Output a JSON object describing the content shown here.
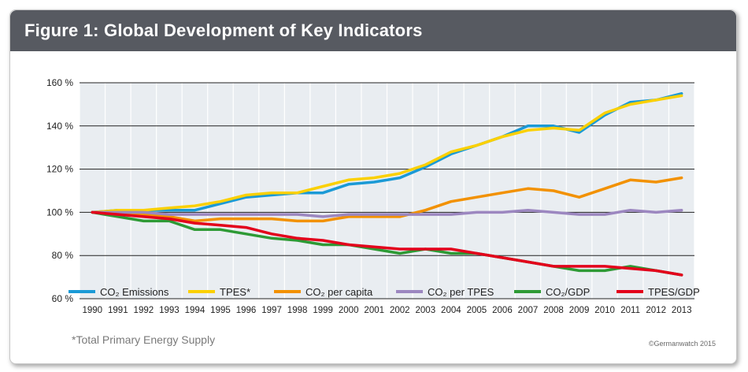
{
  "header": {
    "title": "Figure 1: Global Development of Key Indicators"
  },
  "footer": {
    "footnote": "*Total Primary Energy Supply",
    "copyright": "©Germanwatch 2015"
  },
  "chart_data": {
    "type": "line",
    "title": "Figure 1: Global Development of Key Indicators",
    "x": [
      1990,
      1991,
      1992,
      1993,
      1994,
      1995,
      1996,
      1997,
      1998,
      1999,
      2000,
      2001,
      2002,
      2003,
      2004,
      2005,
      2006,
      2007,
      2008,
      2009,
      2010,
      2011,
      2012,
      2013
    ],
    "x_tick_labels": [
      "1990",
      "1991",
      "1992",
      "1993",
      "1994",
      "1995",
      "1996",
      "1997",
      "1998",
      "1999",
      "2000",
      "2001",
      "2002",
      "2003",
      "2004",
      "2005",
      "2006",
      "2007",
      "2008",
      "2009",
      "2010",
      "2011",
      "2012",
      "2013"
    ],
    "ylim": [
      60,
      160
    ],
    "y_ticks": [
      60,
      80,
      100,
      120,
      140,
      160
    ],
    "y_tick_labels": [
      "60 %",
      "80 %",
      "100 %",
      "120 %",
      "140 %",
      "160 %"
    ],
    "grid": true,
    "legend_position": "bottom",
    "series": [
      {
        "name": "CO₂ Emissions",
        "color": "#1b9ad6",
        "values": [
          100,
          101,
          101,
          101,
          101,
          104,
          107,
          108,
          109,
          109,
          113,
          114,
          116,
          121,
          127,
          131,
          135,
          140,
          140,
          137,
          145,
          151,
          152,
          155
        ]
      },
      {
        "name": "TPES*",
        "color": "#fbd000",
        "values": [
          100,
          101,
          101,
          102,
          103,
          105,
          108,
          109,
          109,
          112,
          115,
          116,
          118,
          122,
          128,
          131,
          135,
          138,
          139,
          138,
          146,
          150,
          152,
          154
        ]
      },
      {
        "name": "CO₂ per capita",
        "color": "#f29100",
        "values": [
          100,
          100,
          99,
          98,
          96,
          97,
          97,
          97,
          96,
          96,
          98,
          98,
          98,
          101,
          105,
          107,
          109,
          111,
          110,
          107,
          111,
          115,
          114,
          116
        ]
      },
      {
        "name": "CO₂ per TPES",
        "color": "#9c87c0",
        "values": [
          100,
          100,
          100,
          99,
          99,
          99,
          99,
          99,
          99,
          98,
          99,
          99,
          99,
          99,
          99,
          100,
          100,
          101,
          100,
          99,
          99,
          101,
          100,
          101
        ]
      },
      {
        "name": "CO₂/GDP",
        "color": "#2e9a35",
        "values": [
          100,
          98,
          96,
          96,
          92,
          92,
          90,
          88,
          87,
          85,
          85,
          83,
          81,
          83,
          81,
          81,
          79,
          77,
          75,
          73,
          73,
          75,
          73,
          71
        ]
      },
      {
        "name": "TPES/GDP",
        "color": "#e3001b",
        "values": [
          100,
          99,
          98,
          97,
          95,
          94,
          93,
          90,
          88,
          87,
          85,
          84,
          83,
          83,
          83,
          81,
          79,
          77,
          75,
          75,
          75,
          74,
          73,
          71
        ]
      }
    ]
  }
}
